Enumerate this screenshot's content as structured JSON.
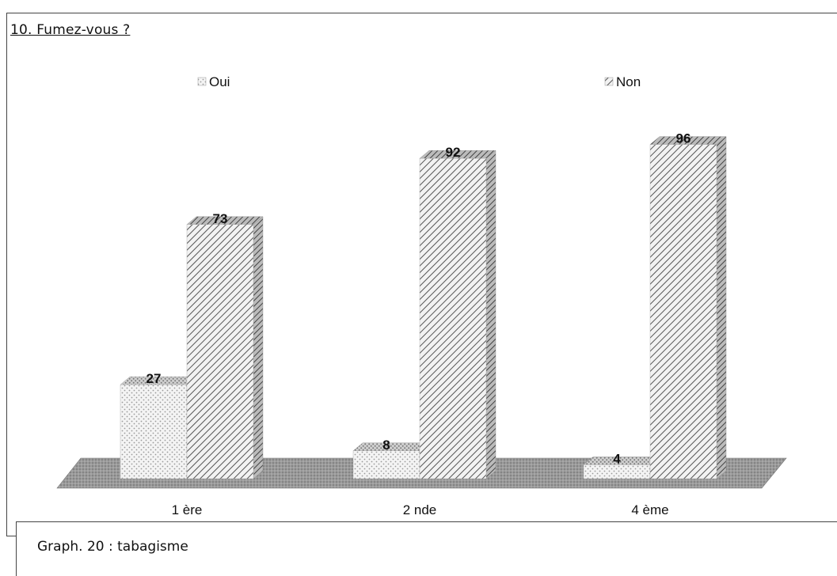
{
  "chart_data": {
    "type": "bar",
    "title": "10. Fumez-vous ?",
    "categories": [
      "1 ère",
      "2 nde",
      "4 ème"
    ],
    "series": [
      {
        "name": "Oui",
        "values": [
          27,
          8,
          4
        ],
        "pattern": "dots",
        "color": "#d8d8d8"
      },
      {
        "name": "Non",
        "values": [
          73,
          92,
          96
        ],
        "pattern": "hatch",
        "color": "#cfcfcf"
      }
    ],
    "ylim": [
      0,
      100
    ],
    "legend_position": "top",
    "grid": false,
    "three_d": true
  },
  "caption": "Graph. 20 : tabagisme"
}
